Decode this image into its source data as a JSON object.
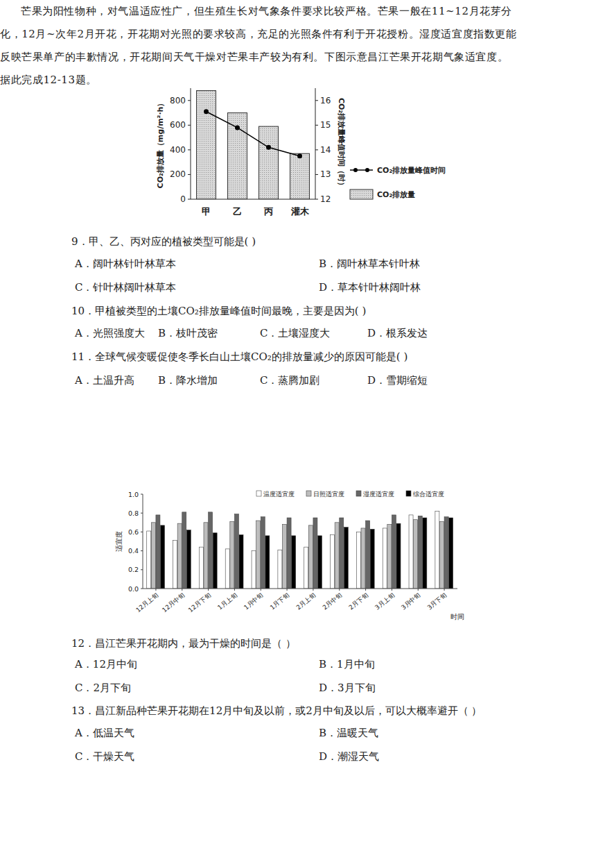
{
  "chart_data": [
    {
      "type": "bar",
      "categories": [
        "甲",
        "乙",
        "丙",
        "灌木"
      ],
      "ylabel": "CO₂排放量（mg/m²·h）",
      "y2label": "CO₂排放量峰值时间（时）",
      "ylim": [
        0,
        900
      ],
      "yticks": [
        0,
        200,
        400,
        600,
        800
      ],
      "y2lim": [
        12,
        16.5
      ],
      "y2ticks": [
        12,
        13,
        14,
        15,
        16
      ],
      "legend": "right",
      "series": [
        {
          "name": "CO₂排放量峰值时间",
          "type": "line",
          "axis": "y2",
          "color": "#000000",
          "marker": "circle",
          "values": [
            15.55,
            14.9,
            14.1,
            13.75
          ]
        },
        {
          "name": "CO₂排放量",
          "type": "bar",
          "color": "#d9d9d9",
          "values": [
            880,
            700,
            590,
            370
          ]
        }
      ]
    },
    {
      "type": "bar",
      "categories": [
        "12月上旬",
        "12月中旬",
        "12月下旬",
        "1月上旬",
        "1月中旬",
        "1月下旬",
        "2月上旬",
        "2月中旬",
        "2月下旬",
        "3月上旬",
        "3月中旬",
        "3月下旬"
      ],
      "xlabel": "时间",
      "ylabel": "适宜度",
      "ylim": [
        0,
        1
      ],
      "yticks": [
        {
          "value": 0,
          "label": "0.0"
        },
        0.2,
        0.4,
        0.6,
        0.8,
        {
          "value": 1,
          "label": "1.0"
        }
      ],
      "legend": "top",
      "series": [
        {
          "name": "温度适宜度",
          "color": "#ffffff",
          "values": [
            0.61,
            0.51,
            0.44,
            0.42,
            0.4,
            0.41,
            0.44,
            0.57,
            0.6,
            0.64,
            0.78,
            0.82
          ]
        },
        {
          "name": "日照适宜度",
          "color": "#bdbdbd",
          "values": [
            0.7,
            0.69,
            0.7,
            0.71,
            0.72,
            0.68,
            0.67,
            0.7,
            0.64,
            0.68,
            0.73,
            0.71
          ]
        },
        {
          "name": "湿度适宜度",
          "color": "#666666",
          "values": [
            0.78,
            0.81,
            0.81,
            0.79,
            0.76,
            0.75,
            0.75,
            0.75,
            0.72,
            0.78,
            0.77,
            0.76
          ]
        },
        {
          "name": "综合适宜度",
          "color": "#000000",
          "values": [
            0.67,
            0.62,
            0.59,
            0.57,
            0.56,
            0.56,
            0.56,
            0.65,
            0.63,
            0.69,
            0.75,
            0.75
          ]
        }
      ]
    }
  ],
  "document": {
    "questions": [
      {
        "stem": "9．甲、乙、丙对应的植被类型可能是(     )",
        "options": [
          "A．阔叶林针叶林草本",
          "B．阔叶林草本针叶林",
          "C．针叶林阔叶林草本",
          "D．草本针叶林阔叶林"
        ]
      },
      {
        "stem": "10．甲植被类型的土壤CO₂排放量峰值时间最晚，主要是因为(     )",
        "options": [
          "A．光照强度大",
          "B．枝叶茂密",
          "C．土壤湿度大",
          "D．根系发达"
        ]
      },
      {
        "stem": "11．全球气候变暖促使冬季长白山土壤CO₂的排放量减少的原因可能是(     )",
        "options": [
          "A．土温升高",
          "B．降水增加",
          "C．蒸腾加剧",
          "D．雪期缩短"
        ]
      },
      {
        "stem": "12．昌江芒果开花期内，最为干燥的时间是（     ）",
        "options": [
          "A．12月中旬",
          "B．1月中旬",
          "C．2月下旬",
          "D．3月下旬"
        ]
      },
      {
        "stem": "13．昌江新品种芒果开花期在12月中旬及以前，或2月中旬及以后，可以大概率避开（     ）",
        "options": [
          "A．低温天气",
          "B．温暖天气",
          "C．干燥天气",
          "D．潮湿天气"
        ]
      }
    ],
    "passage": "芒果为阳性物种，对气温适应性广，但生殖生长对气象条件要求比较严格。芒果一般在11~12月花芽分化，12月~次年2月开花，开花期对光照的要求较高，充足的光照条件有利于开花授粉。湿度适宜度指数更能反映芒果单产的丰歉情况，开花期间天气干燥对芒果丰产较为有利。下图示意昌江芒果开花期气象适宜度。据此完成12-13题。"
  }
}
